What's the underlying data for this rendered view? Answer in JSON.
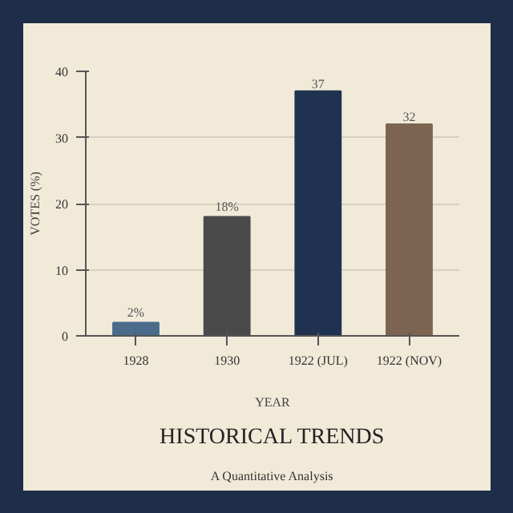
{
  "chart_data": {
    "type": "bar",
    "title": "HISTORICAL TRENDS",
    "subtitle": "A Quantitative Analysis",
    "xlabel": "YEAR",
    "ylabel": "VOTES (%)",
    "categories": [
      "1928",
      "1930",
      "1922 (JUL)",
      "1922 (NOV)"
    ],
    "values": [
      2,
      18,
      37,
      32
    ],
    "value_labels": [
      "2%",
      "18%",
      "37",
      "32"
    ],
    "colors": [
      "#4a6b8a",
      "#4a4a4a",
      "#1f3350",
      "#7d6450"
    ],
    "ylim": [
      0,
      40
    ],
    "yticks": [
      0,
      10,
      20,
      30,
      40
    ],
    "grid": "y"
  }
}
